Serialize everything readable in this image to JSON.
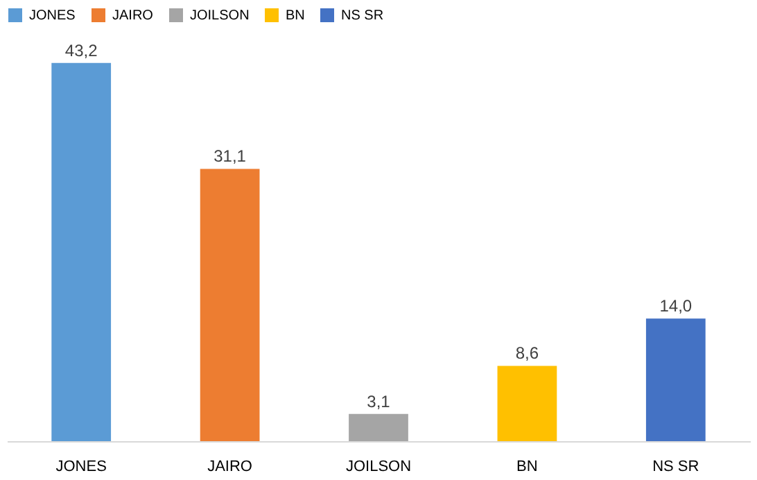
{
  "chart_data": {
    "type": "bar",
    "categories": [
      "JONES",
      "JAIRO",
      "JOILSON",
      "BN",
      "NS SR"
    ],
    "series": [
      {
        "name": "JONES",
        "color": "#5b9bd5",
        "values": [
          43.2,
          null,
          null,
          null,
          null
        ],
        "value_labels": [
          "43,2",
          null,
          null,
          null,
          null
        ]
      },
      {
        "name": "JAIRO",
        "color": "#ed7d31",
        "values": [
          null,
          31.1,
          null,
          null,
          null
        ],
        "value_labels": [
          null,
          "31,1",
          null,
          null,
          null
        ]
      },
      {
        "name": "JOILSON",
        "color": "#a5a5a5",
        "values": [
          null,
          null,
          3.1,
          null,
          null
        ],
        "value_labels": [
          null,
          null,
          "3,1",
          null,
          null
        ]
      },
      {
        "name": "BN",
        "color": "#ffc000",
        "values": [
          null,
          null,
          null,
          8.6,
          null
        ],
        "value_labels": [
          null,
          null,
          null,
          "8,6",
          null
        ]
      },
      {
        "name": "NS SR",
        "color": "#4472c4",
        "values": [
          null,
          null,
          null,
          null,
          14.0
        ],
        "value_labels": [
          null,
          null,
          null,
          null,
          "14,0"
        ]
      }
    ],
    "legend": "top",
    "grid": false
  }
}
